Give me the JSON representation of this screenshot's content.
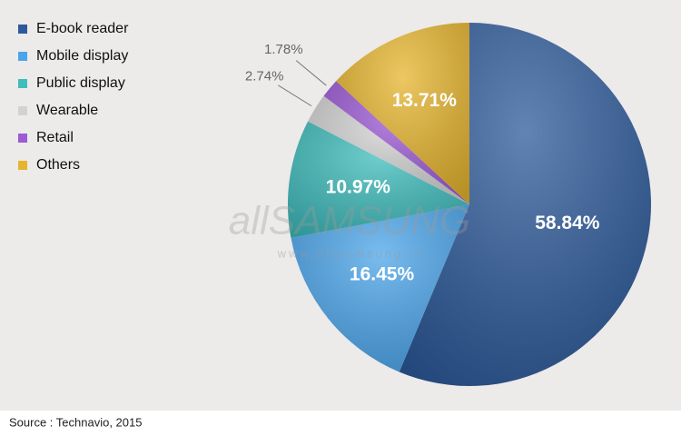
{
  "chart_data": {
    "type": "pie",
    "categories": [
      "E-book reader",
      "Mobile display",
      "Public display",
      "Wearable",
      "Retail",
      "Others"
    ],
    "values": [
      58.84,
      16.45,
      10.97,
      2.74,
      1.78,
      13.71
    ],
    "value_labels": [
      "58.84%",
      "16.45%",
      "10.97%",
      "2.74%",
      "1.78%",
      "13.71%"
    ],
    "colors": [
      "#2d5a9a",
      "#4ba5ea",
      "#3fbcbc",
      "#d3d2d2",
      "#9d5ad6",
      "#e6b52e"
    ],
    "legend": "top-left",
    "watermark": "allSAMSUNG",
    "watermark_url": "www.allsamsung.ir",
    "source": "Source : Technavio, 2015"
  }
}
